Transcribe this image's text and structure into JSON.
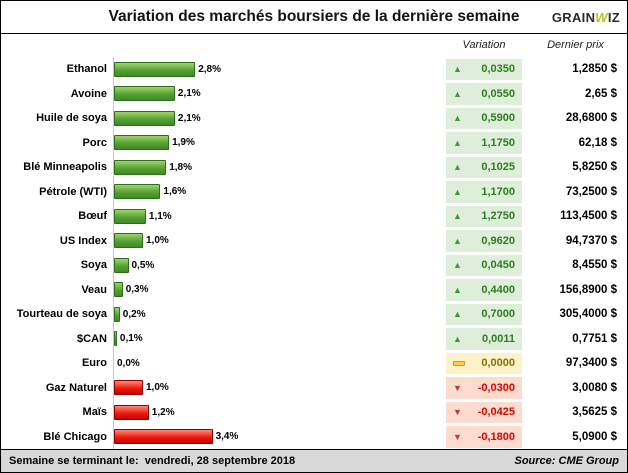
{
  "header": {
    "title": "Variation des marchés boursiers de la dernière semaine",
    "logo": {
      "part1": "GRAIN",
      "part2": "W",
      "part3": "IZ"
    }
  },
  "columns": {
    "variation": "Variation",
    "price": "Dernier prix"
  },
  "rows": [
    {
      "label": "Ethanol",
      "pct": 2.8,
      "pct_label": "2,8%",
      "dir": "up",
      "variation": "0,0350",
      "price": "1,2850 $"
    },
    {
      "label": "Avoine",
      "pct": 2.1,
      "pct_label": "2,1%",
      "dir": "up",
      "variation": "0,0550",
      "price": "2,65 $"
    },
    {
      "label": "Huile de soya",
      "pct": 2.1,
      "pct_label": "2,1%",
      "dir": "up",
      "variation": "0,5900",
      "price": "28,6800 $"
    },
    {
      "label": "Porc",
      "pct": 1.9,
      "pct_label": "1,9%",
      "dir": "up",
      "variation": "1,1750",
      "price": "62,18 $"
    },
    {
      "label": "Blé Minneapolis",
      "pct": 1.8,
      "pct_label": "1,8%",
      "dir": "up",
      "variation": "0,1025",
      "price": "5,8250 $"
    },
    {
      "label": "Pétrole (WTI)",
      "pct": 1.6,
      "pct_label": "1,6%",
      "dir": "up",
      "variation": "1,1700",
      "price": "73,2500 $"
    },
    {
      "label": "Bœuf",
      "pct": 1.1,
      "pct_label": "1,1%",
      "dir": "up",
      "variation": "1,2750",
      "price": "113,4500 $"
    },
    {
      "label": "US Index",
      "pct": 1.0,
      "pct_label": "1,0%",
      "dir": "up",
      "variation": "0,9620",
      "price": "94,7370 $"
    },
    {
      "label": "Soya",
      "pct": 0.5,
      "pct_label": "0,5%",
      "dir": "up",
      "variation": "0,0450",
      "price": "8,4550 $"
    },
    {
      "label": "Veau",
      "pct": 0.3,
      "pct_label": "0,3%",
      "dir": "up",
      "variation": "0,4400",
      "price": "156,8900 $"
    },
    {
      "label": "Tourteau de soya",
      "pct": 0.2,
      "pct_label": "0,2%",
      "dir": "up",
      "variation": "0,7000",
      "price": "305,4000 $"
    },
    {
      "label": "$CAN",
      "pct": 0.1,
      "pct_label": "0,1%",
      "dir": "up",
      "variation": "0,0011",
      "price": "0,7751 $"
    },
    {
      "label": "Euro",
      "pct": 0.0,
      "pct_label": "0,0%",
      "dir": "flat",
      "variation": "0,0000",
      "price": "97,3400 $"
    },
    {
      "label": "Gaz Naturel",
      "pct": 1.0,
      "pct_label": "1,0%",
      "dir": "down",
      "variation": "-0,0300",
      "price": "3,0080 $"
    },
    {
      "label": "Maïs",
      "pct": 1.2,
      "pct_label": "1,2%",
      "dir": "down",
      "variation": "-0,0425",
      "price": "3,5625 $"
    },
    {
      "label": "Blé Chicago",
      "pct": 3.4,
      "pct_label": "3,4%",
      "dir": "down",
      "variation": "-0,1800",
      "price": "5,0900 $"
    }
  ],
  "footer": {
    "left": "Semaine se terminant le:  vendredi, 28 septembre 2018",
    "right": "Source: CME Group"
  },
  "colors": {
    "bar_positive": "#4EA72E",
    "bar_negative": "#E60000",
    "cell_positive": "#DFEEDA",
    "cell_flat": "#FEF2CB",
    "cell_negative": "#FBDCCF",
    "footer_bg": "#D9D9D9"
  },
  "chart_data": {
    "type": "bar",
    "orientation": "horizontal",
    "title": "Variation des marchés boursiers de la dernière semaine",
    "categories": [
      "Ethanol",
      "Avoine",
      "Huile de soya",
      "Porc",
      "Blé Minneapolis",
      "Pétrole (WTI)",
      "Bœuf",
      "US Index",
      "Soya",
      "Veau",
      "Tourteau de soya",
      "$CAN",
      "Euro",
      "Gaz Naturel",
      "Maïs",
      "Blé Chicago"
    ],
    "series": [
      {
        "name": "Variation (%)",
        "values": [
          2.8,
          2.1,
          2.1,
          1.9,
          1.8,
          1.6,
          1.1,
          1.0,
          0.5,
          0.3,
          0.2,
          0.1,
          0.0,
          -1.0,
          -1.2,
          -3.4
        ]
      },
      {
        "name": "Variation",
        "values": [
          0.035,
          0.055,
          0.59,
          1.175,
          0.1025,
          1.17,
          1.275,
          0.962,
          0.045,
          0.44,
          0.7,
          0.0011,
          0.0,
          -0.03,
          -0.0425,
          -0.18
        ]
      },
      {
        "name": "Dernier prix ($)",
        "values": [
          1.285,
          2.65,
          28.68,
          62.18,
          5.825,
          73.25,
          113.45,
          94.737,
          8.455,
          156.89,
          305.4,
          0.7751,
          97.34,
          3.008,
          3.5625,
          5.09
        ]
      }
    ],
    "value_labels": true,
    "legend": false,
    "xlim": [
      0,
      3.5
    ]
  }
}
